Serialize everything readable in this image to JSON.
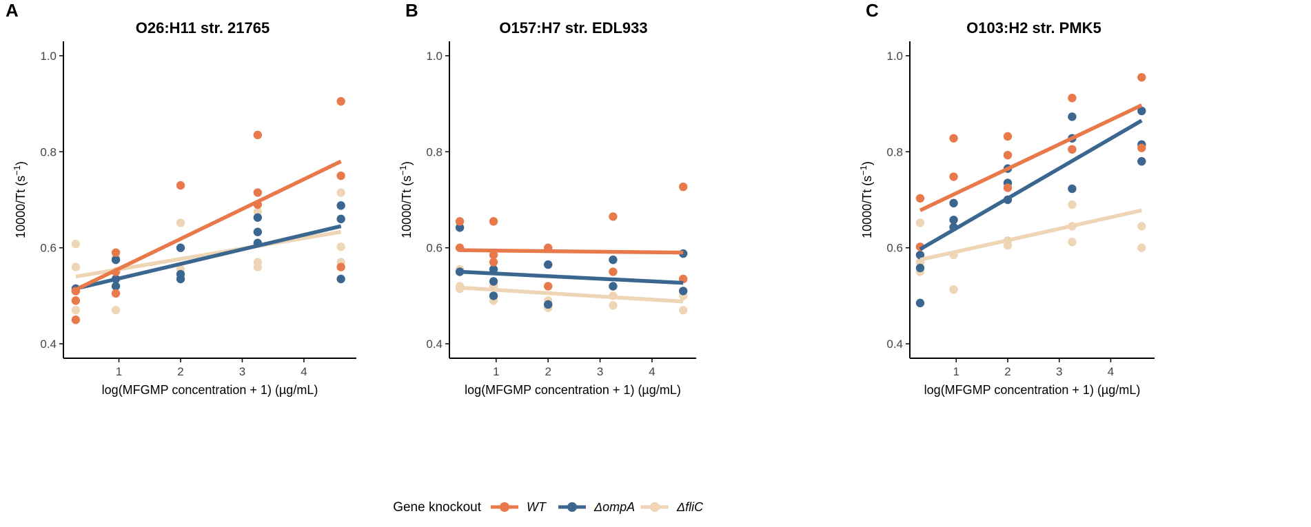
{
  "colors": {
    "WT": "#e8794a",
    "ompA": "#3a6690",
    "fliC": "#edd5b5",
    "axis": "#000000",
    "text": "#333333"
  },
  "y_axis_label": "10000/Tt (s",
  "y_axis_label_sup": "−1",
  "y_axis_label_end": ")",
  "legend": {
    "title": "Gene knockout",
    "items": [
      {
        "key": "WT",
        "label": "WT"
      },
      {
        "key": "ompA",
        "label": "ΔompA"
      },
      {
        "key": "fliC",
        "label": "ΔfliC"
      }
    ]
  },
  "chart_data": [
    {
      "panel": "A",
      "type": "scatter",
      "title": "O26:H11 str. 21765",
      "xlabel": "log(MFGMP concentration + 1) (µg/mL)",
      "ylabel": "10000/Tt (s−1)",
      "xlim": [
        0.1,
        4.85
      ],
      "ylim": [
        0.37,
        1.03
      ],
      "xticks": [
        1,
        2,
        3,
        4
      ],
      "yticks": [
        0.4,
        0.6,
        0.8,
        1.0
      ],
      "ytick_labels": [
        "0.4",
        "0.6",
        "0.8",
        "1.0"
      ],
      "series": [
        {
          "name": "WT",
          "points": [
            [
              0.3,
              0.49
            ],
            [
              0.3,
              0.45
            ],
            [
              0.3,
              0.51
            ],
            [
              0.95,
              0.59
            ],
            [
              0.95,
              0.505
            ],
            [
              0.95,
              0.55
            ],
            [
              2.0,
              0.73
            ],
            [
              3.25,
              0.835
            ],
            [
              3.25,
              0.715
            ],
            [
              3.25,
              0.69
            ],
            [
              4.6,
              0.905
            ],
            [
              4.6,
              0.75
            ],
            [
              4.6,
              0.56
            ]
          ],
          "fit": [
            [
              0.3,
              0.513
            ],
            [
              4.6,
              0.78
            ]
          ]
        },
        {
          "name": "ΔompA",
          "points": [
            [
              0.3,
              0.51
            ],
            [
              0.3,
              0.515
            ],
            [
              0.95,
              0.575
            ],
            [
              0.95,
              0.535
            ],
            [
              0.95,
              0.52
            ],
            [
              2.0,
              0.6
            ],
            [
              2.0,
              0.545
            ],
            [
              2.0,
              0.535
            ],
            [
              3.25,
              0.663
            ],
            [
              3.25,
              0.633
            ],
            [
              3.25,
              0.61
            ],
            [
              4.6,
              0.688
            ],
            [
              4.6,
              0.66
            ],
            [
              4.6,
              0.535
            ]
          ],
          "fit": [
            [
              0.3,
              0.515
            ],
            [
              4.6,
              0.645
            ]
          ]
        },
        {
          "name": "ΔfliC",
          "points": [
            [
              0.3,
              0.608
            ],
            [
              0.3,
              0.56
            ],
            [
              0.3,
              0.47
            ],
            [
              0.95,
              0.58
            ],
            [
              0.95,
              0.47
            ],
            [
              2.0,
              0.652
            ],
            [
              2.0,
              0.555
            ],
            [
              3.25,
              0.675
            ],
            [
              3.25,
              0.57
            ],
            [
              3.25,
              0.56
            ],
            [
              4.6,
              0.715
            ],
            [
              4.6,
              0.602
            ],
            [
              4.6,
              0.57
            ]
          ],
          "fit": [
            [
              0.3,
              0.54
            ],
            [
              4.6,
              0.633
            ]
          ]
        }
      ]
    },
    {
      "panel": "B",
      "type": "scatter",
      "title": "O157:H7 str. EDL933",
      "xlabel": "log(MFGMP concentration + 1) (µg/mL)",
      "ylabel": "10000/Tt (s−1)",
      "xlim": [
        0.1,
        4.85
      ],
      "ylim": [
        0.37,
        1.03
      ],
      "xticks": [
        1,
        2,
        3,
        4
      ],
      "yticks": [
        0.4,
        0.6,
        0.8,
        1.0
      ],
      "ytick_labels": [
        "0.4",
        "0.6",
        "0.8",
        "1.0"
      ],
      "series": [
        {
          "name": "WT",
          "points": [
            [
              0.3,
              0.655
            ],
            [
              0.3,
              0.6
            ],
            [
              0.95,
              0.655
            ],
            [
              0.95,
              0.585
            ],
            [
              0.95,
              0.57
            ],
            [
              2.0,
              0.6
            ],
            [
              2.0,
              0.52
            ],
            [
              3.25,
              0.665
            ],
            [
              3.25,
              0.55
            ],
            [
              4.6,
              0.727
            ],
            [
              4.6,
              0.535
            ]
          ],
          "fit": [
            [
              0.3,
              0.595
            ],
            [
              4.6,
              0.59
            ]
          ]
        },
        {
          "name": "ΔompA",
          "points": [
            [
              0.3,
              0.642
            ],
            [
              0.3,
              0.55
            ],
            [
              0.95,
              0.555
            ],
            [
              0.95,
              0.53
            ],
            [
              0.95,
              0.5
            ],
            [
              2.0,
              0.565
            ],
            [
              2.0,
              0.482
            ],
            [
              3.25,
              0.575
            ],
            [
              3.25,
              0.52
            ],
            [
              4.6,
              0.588
            ],
            [
              4.6,
              0.51
            ]
          ],
          "fit": [
            [
              0.3,
              0.55
            ],
            [
              4.6,
              0.527
            ]
          ]
        },
        {
          "name": "ΔfliC",
          "points": [
            [
              0.3,
              0.555
            ],
            [
              0.3,
              0.52
            ],
            [
              0.3,
              0.515
            ],
            [
              0.95,
              0.52
            ],
            [
              0.95,
              0.49
            ],
            [
              2.0,
              0.49
            ],
            [
              2.0,
              0.475
            ],
            [
              3.25,
              0.52
            ],
            [
              3.25,
              0.5
            ],
            [
              3.25,
              0.48
            ],
            [
              4.6,
              0.5
            ],
            [
              4.6,
              0.47
            ]
          ],
          "fit": [
            [
              0.3,
              0.517
            ],
            [
              4.6,
              0.488
            ]
          ]
        }
      ]
    },
    {
      "panel": "C",
      "type": "scatter",
      "title": "O103:H2 str. PMK5",
      "xlabel": "log(MFGMP concentration + 1) (µg/mL)",
      "ylabel": "10000/Tt (s−1)",
      "xlim": [
        0.1,
        4.85
      ],
      "ylim": [
        0.37,
        1.03
      ],
      "xticks": [
        1,
        2,
        3,
        4
      ],
      "yticks": [
        0.4,
        0.6,
        0.8,
        1.0
      ],
      "ytick_labels": [
        "0.4",
        "0.6",
        "0.8",
        "1.0"
      ],
      "series": [
        {
          "name": "WT",
          "points": [
            [
              0.3,
              0.703
            ],
            [
              0.3,
              0.602
            ],
            [
              0.95,
              0.828
            ],
            [
              0.95,
              0.748
            ],
            [
              2.0,
              0.832
            ],
            [
              2.0,
              0.793
            ],
            [
              2.0,
              0.725
            ],
            [
              3.25,
              0.912
            ],
            [
              3.25,
              0.805
            ],
            [
              4.6,
              0.955
            ],
            [
              4.6,
              0.808
            ]
          ],
          "fit": [
            [
              0.3,
              0.678
            ],
            [
              4.6,
              0.897
            ]
          ]
        },
        {
          "name": "ΔompA",
          "points": [
            [
              0.3,
              0.585
            ],
            [
              0.3,
              0.558
            ],
            [
              0.3,
              0.485
            ],
            [
              0.95,
              0.693
            ],
            [
              0.95,
              0.658
            ],
            [
              0.95,
              0.643
            ],
            [
              2.0,
              0.765
            ],
            [
              2.0,
              0.735
            ],
            [
              2.0,
              0.7
            ],
            [
              3.25,
              0.873
            ],
            [
              3.25,
              0.828
            ],
            [
              3.25,
              0.723
            ],
            [
              4.6,
              0.885
            ],
            [
              4.6,
              0.815
            ],
            [
              4.6,
              0.78
            ]
          ],
          "fit": [
            [
              0.3,
              0.597
            ],
            [
              4.6,
              0.865
            ]
          ]
        },
        {
          "name": "ΔfliC",
          "points": [
            [
              0.3,
              0.652
            ],
            [
              0.3,
              0.57
            ],
            [
              0.3,
              0.55
            ],
            [
              0.95,
              0.585
            ],
            [
              0.95,
              0.513
            ],
            [
              2.0,
              0.615
            ],
            [
              2.0,
              0.605
            ],
            [
              3.25,
              0.69
            ],
            [
              3.25,
              0.645
            ],
            [
              3.25,
              0.612
            ],
            [
              4.6,
              0.78
            ],
            [
              4.6,
              0.645
            ],
            [
              4.6,
              0.6
            ]
          ],
          "fit": [
            [
              0.3,
              0.575
            ],
            [
              4.6,
              0.678
            ]
          ]
        }
      ]
    }
  ]
}
